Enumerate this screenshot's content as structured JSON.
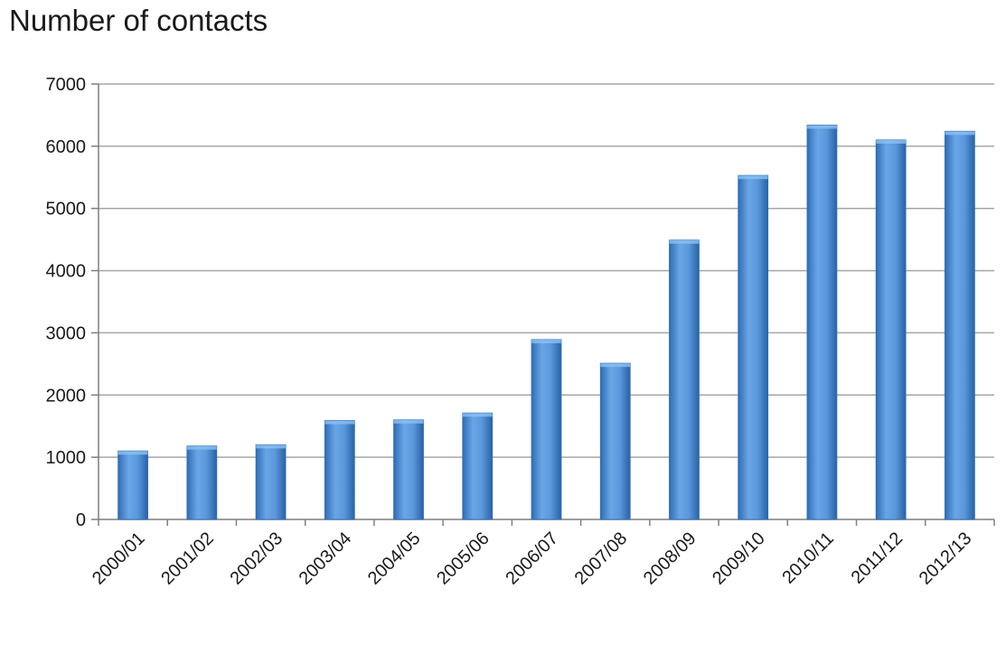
{
  "chart_data": {
    "type": "bar",
    "title": "Number of contacts",
    "xlabel": "",
    "ylabel": "",
    "categories": [
      "2000/01",
      "2001/02",
      "2002/03",
      "2003/04",
      "2004/05",
      "2005/06",
      "2006/07",
      "2007/08",
      "2008/09",
      "2009/10",
      "2010/11",
      "2011/12",
      "2012/13"
    ],
    "values": [
      1100,
      1180,
      1200,
      1590,
      1600,
      1710,
      2890,
      2510,
      4490,
      5530,
      6340,
      6100,
      6240
    ],
    "ylim": [
      0,
      7000
    ],
    "yticks": [
      0,
      1000,
      2000,
      3000,
      4000,
      5000,
      6000,
      7000
    ],
    "grid": true,
    "legend": "none",
    "bar_color": "#4a90d9",
    "bar_edge_color": "#2f6fb0"
  }
}
